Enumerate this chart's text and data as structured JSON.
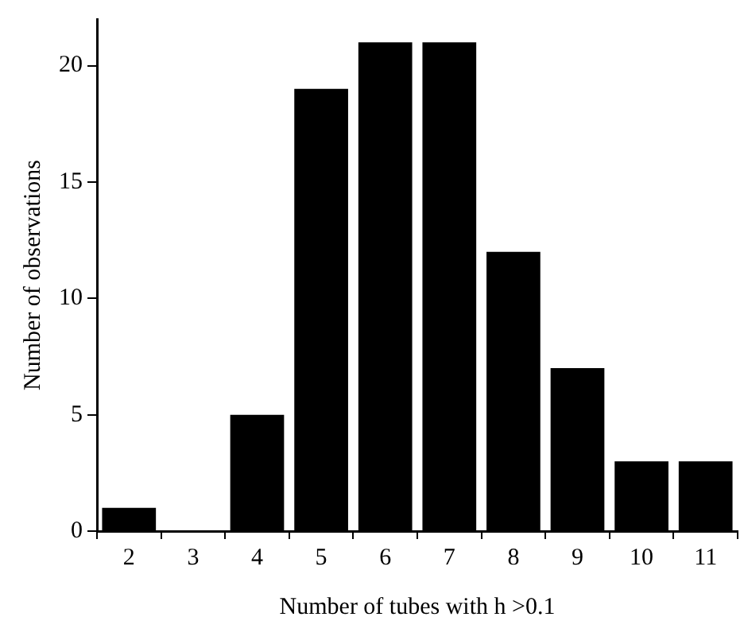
{
  "chart_data": {
    "type": "bar",
    "xlabel": "Number of tubes with h >0.1",
    "ylabel": "Number of observations",
    "categories": [
      "2",
      "3",
      "4",
      "5",
      "6",
      "7",
      "8",
      "9",
      "10",
      "11"
    ],
    "values": [
      1,
      0,
      5,
      19,
      21,
      21,
      12,
      7,
      3,
      3
    ],
    "color": "#000000",
    "ylim": [
      0,
      22
    ],
    "yticks": [
      0,
      5,
      10,
      15,
      20
    ],
    "grid": false,
    "legend": false
  }
}
